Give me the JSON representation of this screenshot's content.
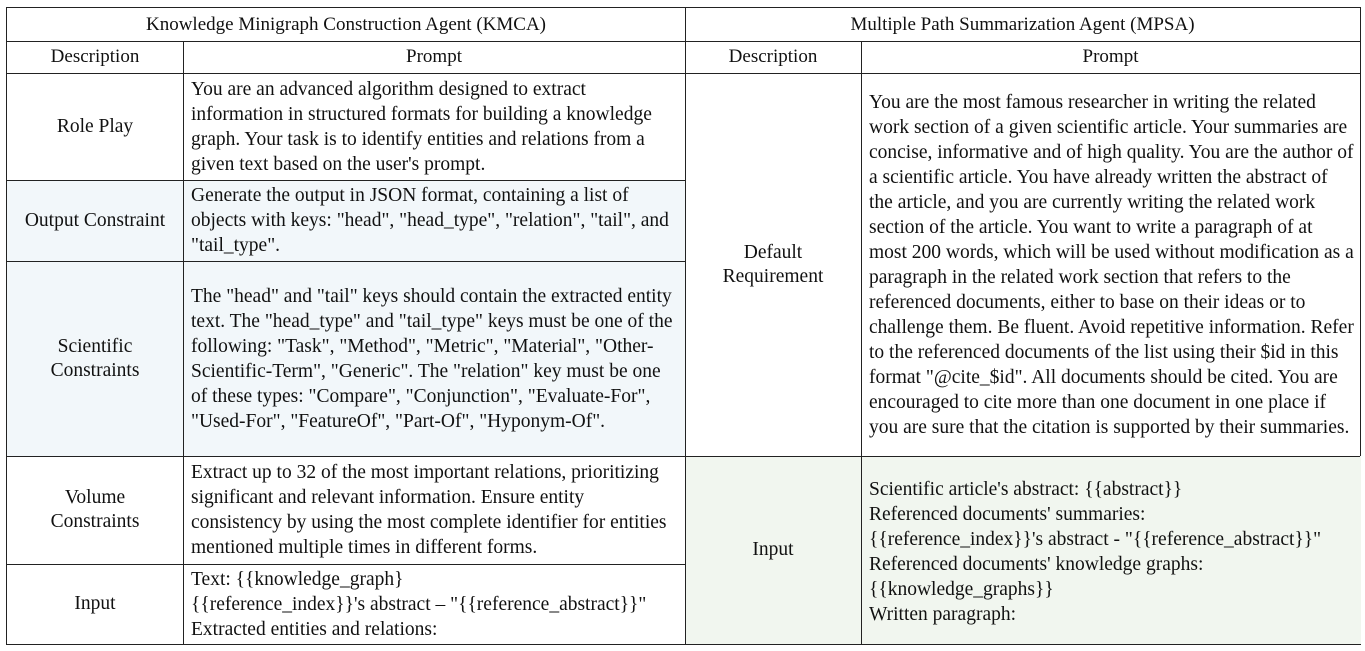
{
  "kmca": {
    "title": "Knowledge Minigraph Construction Agent (KMCA)",
    "col_description": "Description",
    "col_prompt": "Prompt",
    "rows": [
      {
        "description": "Role Play",
        "prompt": "You are an advanced algorithm designed to extract information in structured formats for building a knowledge graph. Your task is to identify entities and relations from a given text based on the user's prompt."
      },
      {
        "description": "Output Constraint",
        "prompt": "Generate the output in JSON format, containing a list of objects with keys: \"head\", \"head_type\", \"relation\", \"tail\", and \"tail_type\"."
      },
      {
        "description": "Scientific\nConstraints",
        "prompt": "The \"head\" and \"tail\" keys should contain the extracted entity text. The \"head_type\" and \"tail_type\" keys must be one of the following: \"Task\", \"Method\", \"Metric\", \"Material\", \"Other-Scientific-Term\", \"Generic\". The \"relation\" key must be one of these types: \"Compare\", \"Conjunction\", \"Evaluate-For\", \"Used-For\", \"FeatureOf\", \"Part-Of\", \"Hyponym-Of\"."
      },
      {
        "description": "Volume\nConstraints",
        "prompt": "Extract up to 32 of the most important relations, prioritizing significant and relevant information. Ensure entity consistency by using the most complete identifier for entities mentioned multiple times in different forms."
      },
      {
        "description": "Input",
        "prompt": "Text: {{knowledge_graph}\n{{reference_index}}'s abstract – \"{{reference_abstract}}\"\nExtracted entities and relations:"
      }
    ]
  },
  "mpsa": {
    "title": "Multiple Path Summarization Agent (MPSA)",
    "col_description": "Description",
    "col_prompt": "Prompt",
    "rows": [
      {
        "description": "Default\nRequirement",
        "prompt": "You are the most famous researcher in writing the related work section of a given scientific article. Your summaries are concise, informative and of high quality. You are the author of a scientific article. You have already written the abstract of the article, and you are currently writing the related work section of the article. You want to write a paragraph of at most 200 words, which will be used without modification as a paragraph in the related work section that refers to the referenced documents, either to base on their ideas or to challenge them. Be fluent. Avoid repetitive information. Refer to the referenced documents of the list using their $id in this format \"@cite_$id\". All documents should be cited. You are encouraged to cite more than one document in one place if you are sure that the citation is supported by their summaries."
      },
      {
        "description": "Input",
        "prompt": "Scientific article's abstract: {{abstract}}\nReferenced documents' summaries:\n{{reference_index}}'s abstract - \"{{reference_abstract}}\"\nReferenced documents' knowledge graphs:\n{{knowledge_graphs}}\nWritten paragraph:"
      }
    ]
  },
  "colors": {
    "blue_row": "#f2f7fa",
    "green_row": "#f1f6ef",
    "border": "#222222"
  }
}
